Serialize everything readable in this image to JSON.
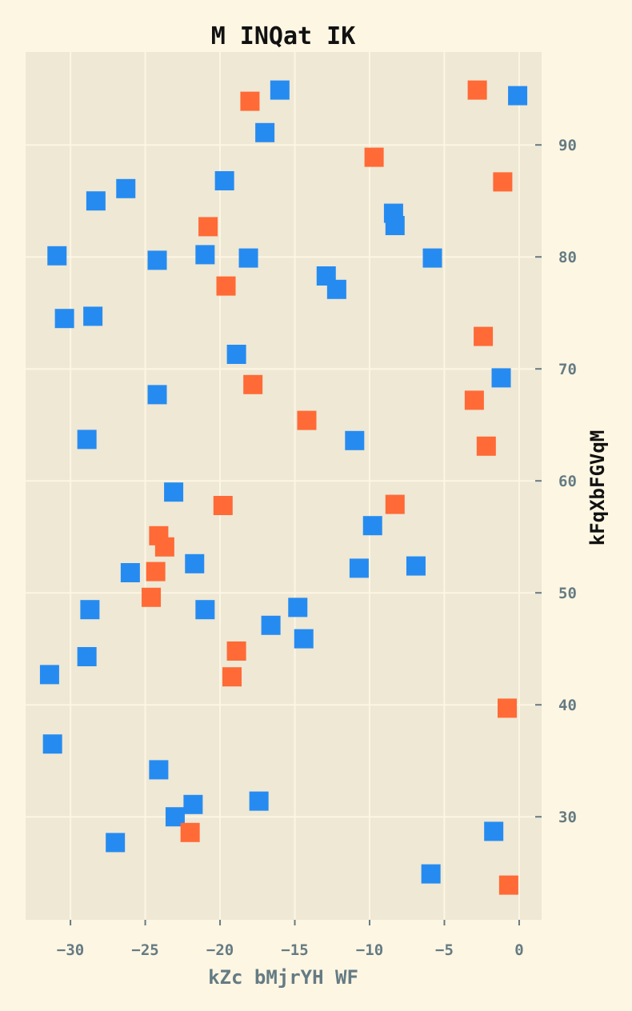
{
  "chart_data": {
    "type": "scatter",
    "title": "M  INQat  IK",
    "xlabel": "kZc bMjrYH WF",
    "ylabel": "kFqXbFGVqM",
    "xlim": [
      -33,
      1.5
    ],
    "ylim": [
      20.8,
      98.3
    ],
    "xticks": [
      -30,
      -25,
      -20,
      -15,
      -10,
      -5,
      0
    ],
    "yticks": [
      30,
      40,
      50,
      60,
      70,
      80,
      90
    ],
    "x_tick_labels": [
      "−30",
      "−25",
      "−20",
      "−15",
      "−10",
      "−5",
      "0"
    ],
    "y_tick_labels": [
      "30",
      "40",
      "50",
      "60",
      "70",
      "80",
      "90"
    ],
    "grid": true,
    "y_axis_position": "right",
    "marker": "square",
    "series": [
      {
        "color": "#268bf0",
        "points": [
          [
            -16.0,
            94.9
          ],
          [
            -0.1,
            94.4
          ],
          [
            -17.0,
            91.1
          ],
          [
            -19.7,
            86.8
          ],
          [
            -26.3,
            86.1
          ],
          [
            -28.3,
            85.0
          ],
          [
            -8.4,
            83.9
          ],
          [
            -8.3,
            82.8
          ],
          [
            -30.9,
            80.1
          ],
          [
            -24.2,
            79.7
          ],
          [
            -21.0,
            80.2
          ],
          [
            -18.1,
            79.9
          ],
          [
            -5.8,
            79.9
          ],
          [
            -12.9,
            78.3
          ],
          [
            -12.2,
            77.1
          ],
          [
            -30.4,
            74.5
          ],
          [
            -28.5,
            74.7
          ],
          [
            -18.9,
            71.3
          ],
          [
            -1.2,
            69.2
          ],
          [
            -24.2,
            67.7
          ],
          [
            -28.9,
            63.7
          ],
          [
            -11.0,
            63.6
          ],
          [
            -23.1,
            59.0
          ],
          [
            -9.8,
            56.0
          ],
          [
            -21.7,
            52.6
          ],
          [
            -26.0,
            51.8
          ],
          [
            -10.7,
            52.2
          ],
          [
            -6.9,
            52.4
          ],
          [
            -28.7,
            48.5
          ],
          [
            -21.0,
            48.5
          ],
          [
            -14.8,
            48.7
          ],
          [
            -16.6,
            47.1
          ],
          [
            -14.4,
            45.9
          ],
          [
            -28.9,
            44.3
          ],
          [
            -31.4,
            42.7
          ],
          [
            -31.2,
            36.5
          ],
          [
            -24.1,
            34.2
          ],
          [
            -21.8,
            31.1
          ],
          [
            -17.4,
            31.4
          ],
          [
            -23.0,
            30.0
          ],
          [
            -27.0,
            27.7
          ],
          [
            -1.7,
            28.7
          ],
          [
            -5.9,
            24.9
          ]
        ]
      },
      {
        "color": "#ff6a36",
        "points": [
          [
            -2.8,
            94.9
          ],
          [
            -18.0,
            93.9
          ],
          [
            -9.7,
            88.9
          ],
          [
            -1.1,
            86.7
          ],
          [
            -20.8,
            82.7
          ],
          [
            -19.6,
            77.4
          ],
          [
            -2.4,
            72.9
          ],
          [
            -17.8,
            68.6
          ],
          [
            -3.0,
            67.2
          ],
          [
            -14.2,
            65.4
          ],
          [
            -2.2,
            63.1
          ],
          [
            -19.8,
            57.8
          ],
          [
            -8.3,
            57.9
          ],
          [
            -24.1,
            55.1
          ],
          [
            -23.7,
            54.1
          ],
          [
            -24.3,
            51.9
          ],
          [
            -24.6,
            49.6
          ],
          [
            -18.9,
            44.8
          ],
          [
            -19.2,
            42.5
          ],
          [
            -0.8,
            39.7
          ],
          [
            -22.0,
            28.6
          ],
          [
            -0.7,
            23.9
          ]
        ]
      }
    ]
  },
  "colors": {
    "page_background": "#fdf6e3",
    "plot_background": "#eee8d5",
    "grid": "#fdf6e3",
    "tick": "#657b83"
  }
}
